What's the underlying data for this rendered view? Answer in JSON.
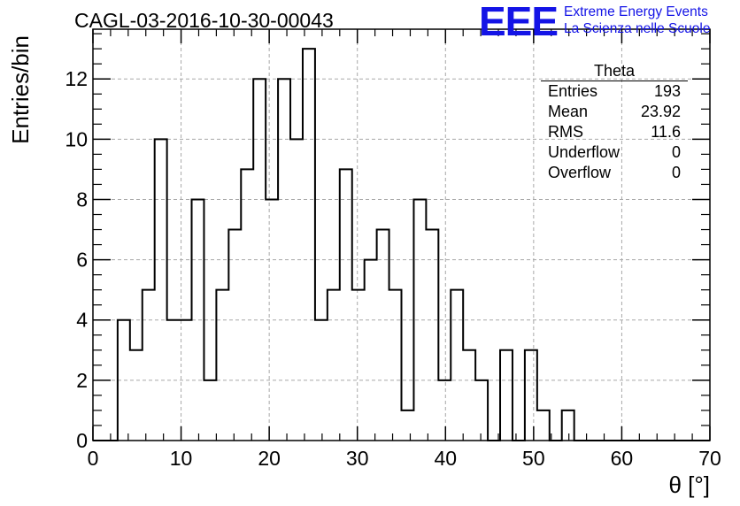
{
  "run_title": "CAGL-03-2016-10-30-00043",
  "logo": {
    "mark": "EEE",
    "line1": "Extreme Energy Events",
    "line2": "La Scienza nelle Scuole",
    "color": "#1414e6"
  },
  "stats_box": {
    "title": "Theta",
    "rows": [
      {
        "label": "Entries",
        "value": "193"
      },
      {
        "label": "Mean",
        "value": "23.92"
      },
      {
        "label": "RMS",
        "value": "11.6"
      },
      {
        "label": "Underflow",
        "value": "0"
      },
      {
        "label": "Overflow",
        "value": "0"
      }
    ]
  },
  "chart_data": {
    "type": "bar",
    "histogram": true,
    "title": "CAGL-03-2016-10-30-00043",
    "xlabel": "θ [°]",
    "ylabel": "Entries/bin",
    "xlim": [
      0,
      70
    ],
    "ylim": [
      0,
      13.65
    ],
    "bin_width": 1.4,
    "x_ticks": [
      0,
      10,
      20,
      30,
      40,
      50,
      60,
      70
    ],
    "y_ticks": [
      0,
      2,
      4,
      6,
      8,
      10,
      12
    ],
    "grid": true,
    "line_color": "#000000",
    "values": [
      0,
      0,
      4,
      3,
      5,
      10,
      4,
      4,
      8,
      2,
      5,
      7,
      9,
      12,
      8,
      12,
      10,
      13,
      4,
      5,
      9,
      5,
      6,
      7,
      5,
      1,
      8,
      7,
      2,
      5,
      3,
      2,
      0,
      3,
      0,
      3,
      1,
      0,
      1,
      0,
      0,
      0,
      0,
      0,
      0,
      0,
      0,
      0,
      0,
      0
    ]
  }
}
